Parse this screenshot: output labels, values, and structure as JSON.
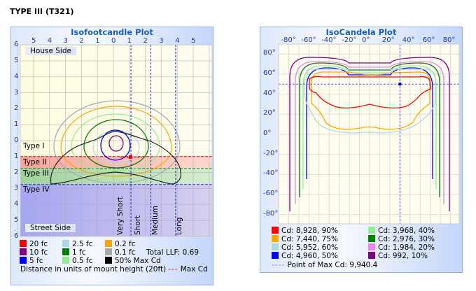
{
  "page_title": "TYPE III (T321)",
  "chart_data": [
    {
      "type": "contour",
      "title": "Isofootcandle Plot",
      "x_ticks": [
        "5",
        "4",
        "3",
        "2",
        "1",
        "0",
        "1",
        "2",
        "3",
        "4",
        "5"
      ],
      "y_ticks": [
        "6",
        "5",
        "4",
        "3",
        "2",
        "1",
        "0",
        "1",
        "2",
        "3",
        "4",
        "5",
        "6"
      ],
      "xlim": [
        -5.8,
        6.2
      ],
      "ylim": [
        -6,
        6
      ],
      "grid": true,
      "side_labels": {
        "house": "House Side",
        "street": "Street Side"
      },
      "zones": [
        {
          "label": "Type I",
          "color": "#fffde6"
        },
        {
          "label": "Type II",
          "color": "#f7a8a0"
        },
        {
          "label": "Type III",
          "color": "#a8d8a0"
        },
        {
          "label": "Type IV",
          "color": "#aaaaf0"
        }
      ],
      "zone_boundaries": [
        1,
        1.75,
        2.75
      ],
      "throw_lines": [
        {
          "label": "Very Short",
          "x": 1.1
        },
        {
          "label": "Short",
          "x": 2.35
        },
        {
          "label": "Medium",
          "x": 3.9
        },
        {
          "label": "Long",
          "x": 6.0
        }
      ],
      "max_cd_point": {
        "x": 1.1,
        "y": 1.05
      },
      "legend": [
        {
          "label": "20 fc",
          "color": "#ff0000"
        },
        {
          "label": "10 fc",
          "color": "#800080"
        },
        {
          "label": "5 fc",
          "color": "#0000ff"
        },
        {
          "label": "2.5 fc",
          "color": "#add8e6"
        },
        {
          "label": "1 fc",
          "color": "#008000"
        },
        {
          "label": "0.5 fc",
          "color": "#90ee90"
        },
        {
          "label": "0.2 fc",
          "color": "#ffa500"
        },
        {
          "label": "0.1 fc",
          "color": "#a9a9a9"
        },
        {
          "label": "50% Max Cd",
          "color": "#000000"
        }
      ],
      "total_llf": "Total LLF: 0.69",
      "footer": "Distance in units of mount height (20ft)",
      "max_cd_label": "Max Cd"
    },
    {
      "type": "contour",
      "title": "IsoCandela Plot",
      "x_ticks": [
        "-80°",
        "-60°",
        "-40°",
        "-20°",
        "0°",
        "20°",
        "40°",
        "60°",
        "80°"
      ],
      "y_ticks": [
        "80°",
        "60°",
        "40°",
        "20°",
        "0°",
        "-20°",
        "-40°",
        "-60°",
        "-80°"
      ],
      "xlim": [
        -90,
        90
      ],
      "ylim": [
        -90,
        90
      ],
      "grid": true,
      "max_point": {
        "x": 30,
        "y": 50
      },
      "legend": [
        {
          "label": "Cd: 8,928, 90%",
          "color": "#ff0000"
        },
        {
          "label": "Cd: 7,440, 75%",
          "color": "#ffa500"
        },
        {
          "label": "Cd: 5,952, 60%",
          "color": "#add8e6"
        },
        {
          "label": "Cd: 4,960, 50%",
          "color": "#0000ff"
        },
        {
          "label": "Cd: 3,968, 40%",
          "color": "#90ee90"
        },
        {
          "label": "Cd: 2,976, 30%",
          "color": "#008000"
        },
        {
          "label": "Cd: 1,984, 20%",
          "color": "#ee82ee"
        },
        {
          "label": "Cd: 992, 10%",
          "color": "#800080"
        }
      ],
      "footer": "Point of Max Cd: 9,940.4"
    }
  ]
}
